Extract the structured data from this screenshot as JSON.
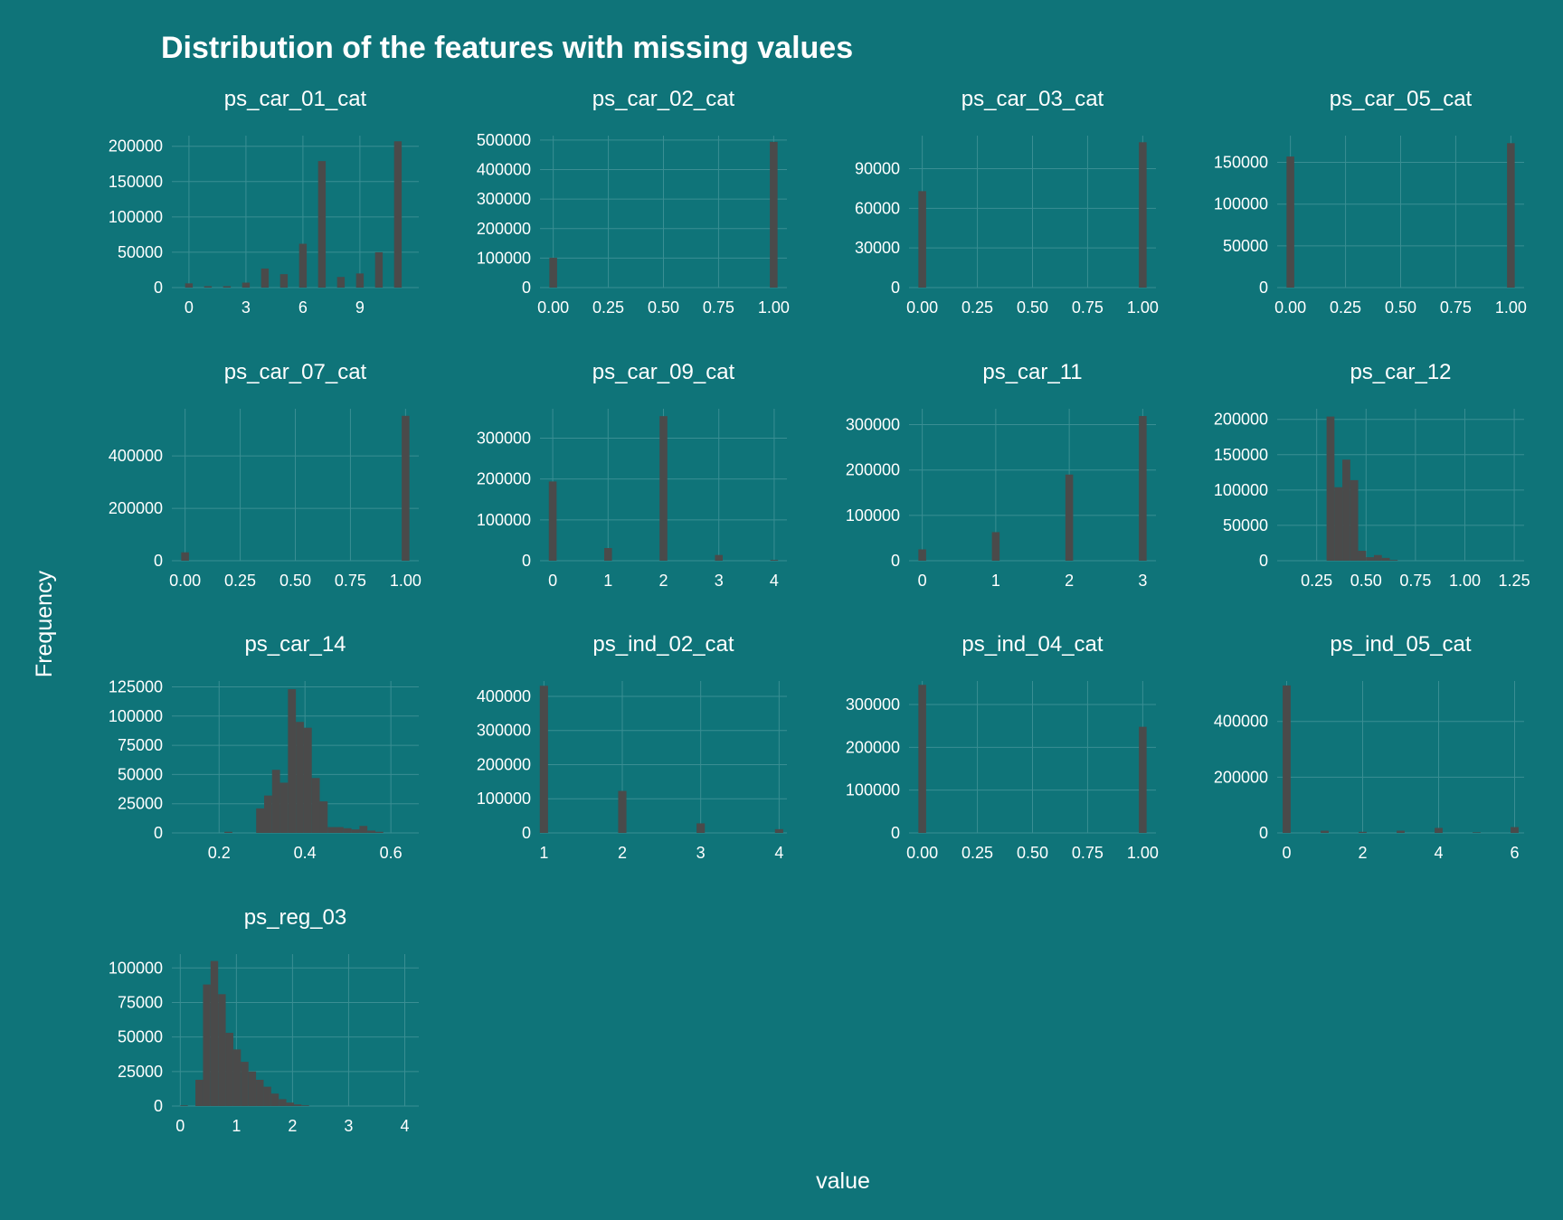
{
  "chart_data": {
    "type": "bar",
    "title": "Distribution of the features with missing values",
    "xlabel": "value",
    "ylabel": "Frequency",
    "grid": true,
    "colors": {
      "background": "#0f7479",
      "bar": "#4a4a4a",
      "grid": "#3a8e93",
      "text": "#ffffff"
    },
    "panels": [
      {
        "name": "ps_car_01_cat",
        "xlim": [
          -0.9,
          12.1
        ],
        "xticks": [
          0,
          3,
          6,
          9
        ],
        "xtick_labels": [
          "0",
          "3",
          "6",
          "9"
        ],
        "ylim": [
          0,
          215000
        ],
        "yticks": [
          0,
          50000,
          100000,
          150000,
          200000
        ],
        "bin_width": 0.4,
        "x": [
          0,
          1,
          2,
          3,
          4,
          5,
          6,
          7,
          8,
          9,
          10,
          11
        ],
        "values": [
          6000,
          2000,
          2000,
          7000,
          27000,
          19000,
          62000,
          179000,
          15000,
          20000,
          50000,
          207000
        ]
      },
      {
        "name": "ps_car_02_cat",
        "xlim": [
          -0.06,
          1.06
        ],
        "xticks": [
          0,
          0.25,
          0.5,
          0.75,
          1
        ],
        "xtick_labels": [
          "0.00",
          "0.25",
          "0.50",
          "0.75",
          "1.00"
        ],
        "ylim": [
          0,
          515000
        ],
        "yticks": [
          0,
          100000,
          200000,
          300000,
          400000,
          500000
        ],
        "bin_width": 0.035,
        "x": [
          0,
          1
        ],
        "values": [
          101000,
          494000
        ]
      },
      {
        "name": "ps_car_03_cat",
        "xlim": [
          -0.06,
          1.06
        ],
        "xticks": [
          0,
          0.25,
          0.5,
          0.75,
          1
        ],
        "xtick_labels": [
          "0.00",
          "0.25",
          "0.50",
          "0.75",
          "1.00"
        ],
        "ylim": [
          0,
          115000
        ],
        "yticks": [
          0,
          30000,
          60000,
          90000
        ],
        "bin_width": 0.035,
        "x": [
          0,
          1
        ],
        "values": [
          73000,
          110000
        ]
      },
      {
        "name": "ps_car_05_cat",
        "xlim": [
          -0.06,
          1.06
        ],
        "xticks": [
          0,
          0.25,
          0.5,
          0.75,
          1
        ],
        "xtick_labels": [
          "0.00",
          "0.25",
          "0.50",
          "0.75",
          "1.00"
        ],
        "ylim": [
          0,
          182000
        ],
        "yticks": [
          0,
          50000,
          100000,
          150000
        ],
        "bin_width": 0.035,
        "x": [
          0,
          1
        ],
        "values": [
          157000,
          173000
        ]
      },
      {
        "name": "ps_car_07_cat",
        "xlim": [
          -0.06,
          1.06
        ],
        "xticks": [
          0,
          0.25,
          0.5,
          0.75,
          1
        ],
        "xtick_labels": [
          "0.00",
          "0.25",
          "0.50",
          "0.75",
          "1.00"
        ],
        "ylim": [
          0,
          580000
        ],
        "yticks": [
          0,
          200000,
          400000
        ],
        "bin_width": 0.035,
        "x": [
          0,
          1
        ],
        "values": [
          32000,
          553000
        ]
      },
      {
        "name": "ps_car_09_cat",
        "xlim": [
          -0.23,
          4.23
        ],
        "xticks": [
          0,
          1,
          2,
          3,
          4
        ],
        "xtick_labels": [
          "0",
          "1",
          "2",
          "3",
          "4"
        ],
        "ylim": [
          0,
          372000
        ],
        "yticks": [
          0,
          100000,
          200000,
          300000
        ],
        "bin_width": 0.14,
        "x": [
          0,
          1,
          2,
          3,
          4
        ],
        "values": [
          194000,
          31000,
          354000,
          14000,
          2000
        ]
      },
      {
        "name": "ps_car_11",
        "xlim": [
          -0.18,
          3.18
        ],
        "xticks": [
          0,
          1,
          2,
          3
        ],
        "xtick_labels": [
          "0",
          "1",
          "2",
          "3"
        ],
        "ylim": [
          0,
          335000
        ],
        "yticks": [
          0,
          100000,
          200000,
          300000
        ],
        "bin_width": 0.105,
        "x": [
          0,
          1,
          2,
          3
        ],
        "values": [
          25000,
          63000,
          190000,
          319000
        ]
      },
      {
        "name": "ps_car_12",
        "xlim": [
          0.05,
          1.3
        ],
        "xticks": [
          0.25,
          0.5,
          0.75,
          1,
          1.25
        ],
        "xtick_labels": [
          "0.25",
          "0.50",
          "0.75",
          "1.00",
          "1.25"
        ],
        "ylim": [
          0,
          215000
        ],
        "yticks": [
          0,
          50000,
          100000,
          150000,
          200000
        ],
        "bin_width": 0.04,
        "x": [
          0.32,
          0.36,
          0.4,
          0.44,
          0.48,
          0.52,
          0.56,
          0.6,
          0.64
        ],
        "values": [
          204000,
          104000,
          143000,
          114000,
          14000,
          5000,
          8000,
          4000,
          1000
        ]
      },
      {
        "name": "ps_car_14",
        "xlim": [
          0.09,
          0.665
        ],
        "xticks": [
          0.2,
          0.4,
          0.6
        ],
        "xtick_labels": [
          "0.2",
          "0.4",
          "0.6"
        ],
        "ylim": [
          0,
          130000
        ],
        "yticks": [
          0,
          25000,
          50000,
          75000,
          100000,
          125000
        ],
        "bin_width": 0.0185,
        "x": [
          0.2216,
          0.2956,
          0.3141,
          0.3326,
          0.3511,
          0.3696,
          0.3881,
          0.4066,
          0.4251,
          0.4436,
          0.4621,
          0.4806,
          0.4991,
          0.5176,
          0.5361,
          0.5546,
          0.5731
        ],
        "values": [
          1000,
          21000,
          32000,
          54000,
          43000,
          123000,
          95000,
          90000,
          47000,
          27000,
          5000,
          5000,
          4000,
          3000,
          6000,
          2000,
          1000
        ]
      },
      {
        "name": "ps_ind_02_cat",
        "xlim": [
          0.95,
          4.1
        ],
        "xticks": [
          1,
          2,
          3,
          4
        ],
        "xtick_labels": [
          "1",
          "2",
          "3",
          "4"
        ],
        "ylim": [
          0,
          445000
        ],
        "yticks": [
          0,
          100000,
          200000,
          300000,
          400000
        ],
        "bin_width": 0.105,
        "x": [
          1,
          2,
          3,
          4
        ],
        "values": [
          431000,
          123000,
          28000,
          11000
        ]
      },
      {
        "name": "ps_ind_04_cat",
        "xlim": [
          -0.06,
          1.06
        ],
        "xticks": [
          0,
          0.25,
          0.5,
          0.75,
          1
        ],
        "xtick_labels": [
          "0.00",
          "0.25",
          "0.50",
          "0.75",
          "1.00"
        ],
        "ylim": [
          0,
          355000
        ],
        "yticks": [
          0,
          100000,
          200000,
          300000
        ],
        "bin_width": 0.035,
        "x": [
          0,
          1
        ],
        "values": [
          346000,
          248000
        ]
      },
      {
        "name": "ps_ind_05_cat",
        "xlim": [
          -0.25,
          6.25
        ],
        "xticks": [
          0,
          2,
          4,
          6
        ],
        "xtick_labels": [
          "0",
          "2",
          "4",
          "6"
        ],
        "ylim": [
          0,
          545000
        ],
        "yticks": [
          0,
          200000,
          400000
        ],
        "bin_width": 0.21,
        "x": [
          0,
          1,
          2,
          3,
          4,
          5,
          6
        ],
        "values": [
          529000,
          8000,
          4000,
          8000,
          18000,
          2000,
          21000
        ]
      },
      {
        "name": "ps_reg_03",
        "xlim": [
          -0.15,
          4.25
        ],
        "xticks": [
          0,
          1,
          2,
          3,
          4
        ],
        "xtick_labels": [
          "0",
          "1",
          "2",
          "3",
          "4"
        ],
        "ylim": [
          0,
          110000
        ],
        "yticks": [
          0,
          25000,
          50000,
          75000,
          100000
        ],
        "bin_width": 0.135,
        "x": [
          0.0675,
          0.3375,
          0.4725,
          0.6075,
          0.7425,
          0.8775,
          1.0125,
          1.1475,
          1.2825,
          1.4175,
          1.5525,
          1.6875,
          1.8225,
          1.9575,
          2.0925,
          2.2275
        ],
        "values": [
          500,
          19000,
          88000,
          105000,
          81000,
          53000,
          41000,
          32000,
          25000,
          19000,
          14000,
          9000,
          5000,
          2500,
          1200,
          500
        ]
      }
    ]
  }
}
